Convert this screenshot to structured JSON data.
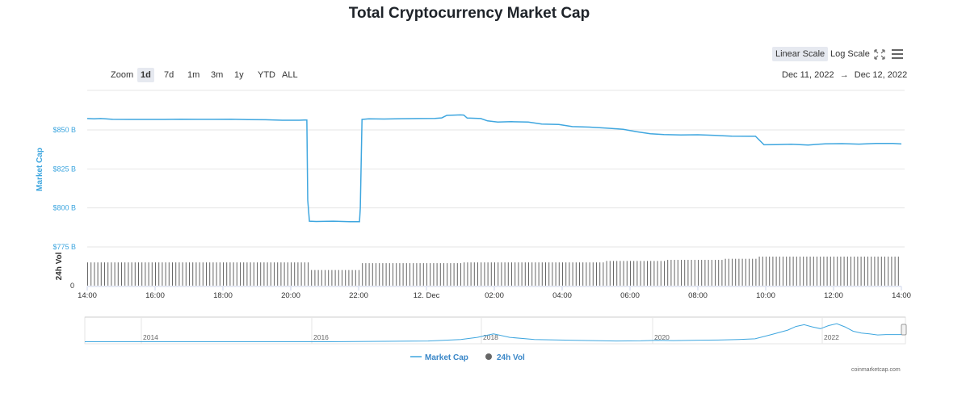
{
  "chart_data": {
    "type": "line",
    "title": "Total Cryptocurrency Market Cap",
    "ylabel": "Market Cap",
    "vol_label": "24h Vol",
    "vol_zero_label": "0",
    "y_ticks": [
      {
        "value": 850,
        "label": "$850 B"
      },
      {
        "value": 825,
        "label": "$825 B"
      },
      {
        "value": 800,
        "label": "$800 B"
      },
      {
        "value": 775,
        "label": "$775 B"
      }
    ],
    "ylim": [
      775,
      860
    ],
    "x_ticks": [
      "14:00",
      "16:00",
      "18:00",
      "20:00",
      "22:00",
      "12. Dec",
      "02:00",
      "04:00",
      "06:00",
      "08:00",
      "10:00",
      "12:00",
      "14:00"
    ],
    "x_hours_range": [
      0,
      24
    ],
    "series": [
      {
        "name": "Market Cap",
        "color": "#3ea6df",
        "points": [
          [
            0,
            857.3
          ],
          [
            0.4,
            857.1
          ],
          [
            0.8,
            857.3
          ],
          [
            1.5,
            856.8
          ],
          [
            2.5,
            856.7
          ],
          [
            3.5,
            856.7
          ],
          [
            4.5,
            856.7
          ],
          [
            5.5,
            856.9
          ],
          [
            6.5,
            856.8
          ],
          [
            7.5,
            856.8
          ],
          [
            8.5,
            856.9
          ],
          [
            9.5,
            856.6
          ],
          [
            10.5,
            856.5
          ],
          [
            11.5,
            856.2
          ],
          [
            12.5,
            856.2
          ],
          [
            12.8,
            856.3
          ],
          [
            12.95,
            856.3
          ],
          [
            13.0,
            805
          ],
          [
            13.1,
            791.5
          ],
          [
            13.5,
            791.3
          ],
          [
            14.5,
            791.5
          ],
          [
            15.5,
            791.2
          ],
          [
            16.05,
            791.2
          ],
          [
            16.1,
            800
          ],
          [
            16.2,
            856.7
          ],
          [
            16.6,
            857.1
          ],
          [
            17.5,
            857.0
          ],
          [
            18.5,
            857.2
          ],
          [
            19.5,
            857.3
          ],
          [
            20.5,
            857.4
          ],
          [
            20.9,
            857.7
          ],
          [
            21.2,
            859.3
          ],
          [
            22.0,
            859.6
          ],
          [
            22.2,
            859.5
          ],
          [
            22.4,
            857.6
          ],
          [
            23.2,
            857.3
          ],
          [
            23.6,
            855.8
          ],
          [
            24.2,
            855.0
          ],
          [
            25.0,
            855.3
          ],
          [
            26.0,
            855.0
          ],
          [
            26.8,
            853.8
          ],
          [
            27.8,
            853.5
          ],
          [
            28.6,
            852.1
          ],
          [
            29.6,
            851.8
          ],
          [
            30.6,
            851.2
          ],
          [
            31.6,
            850.4
          ],
          [
            32.4,
            848.8
          ],
          [
            33.2,
            847.5
          ],
          [
            34.0,
            847.0
          ],
          [
            35.0,
            846.8
          ],
          [
            36.0,
            846.9
          ],
          [
            37.0,
            846.5
          ],
          [
            38.0,
            846.0
          ],
          [
            39.0,
            845.9
          ],
          [
            39.4,
            845.9
          ],
          [
            39.9,
            840.5
          ],
          [
            40.6,
            840.6
          ],
          [
            41.5,
            840.8
          ],
          [
            42.5,
            840.3
          ],
          [
            43.5,
            841.1
          ],
          [
            44.5,
            841.2
          ],
          [
            45.5,
            840.9
          ],
          [
            46.5,
            841.3
          ],
          [
            47.5,
            841.3
          ],
          [
            48.0,
            841.0
          ]
        ]
      },
      {
        "name": "24h Vol",
        "color": "#666666",
        "steps": [
          {
            "from": 0,
            "to": 13.0,
            "level": 0.64
          },
          {
            "from": 13.0,
            "to": 16.1,
            "level": 0.43
          },
          {
            "from": 16.1,
            "to": 22.0,
            "level": 0.62
          },
          {
            "from": 22.0,
            "to": 30.5,
            "level": 0.64
          },
          {
            "from": 30.5,
            "to": 34.0,
            "level": 0.68
          },
          {
            "from": 34.0,
            "to": 37.5,
            "level": 0.71
          },
          {
            "from": 37.5,
            "to": 39.5,
            "level": 0.74
          },
          {
            "from": 39.5,
            "to": 48.0,
            "level": 0.8
          }
        ]
      }
    ],
    "navigator": {
      "years": [
        "2014",
        "2016",
        "2018",
        "2020",
        "2022"
      ],
      "profile": [
        [
          0,
          0.02
        ],
        [
          0.3,
          0.02
        ],
        [
          0.42,
          0.05
        ],
        [
          0.46,
          0.12
        ],
        [
          0.48,
          0.22
        ],
        [
          0.5,
          0.38
        ],
        [
          0.52,
          0.22
        ],
        [
          0.55,
          0.12
        ],
        [
          0.6,
          0.08
        ],
        [
          0.65,
          0.05
        ],
        [
          0.68,
          0.06
        ],
        [
          0.7,
          0.08
        ],
        [
          0.72,
          0.07
        ],
        [
          0.75,
          0.09
        ],
        [
          0.78,
          0.1
        ],
        [
          0.8,
          0.12
        ],
        [
          0.82,
          0.15
        ],
        [
          0.84,
          0.35
        ],
        [
          0.86,
          0.55
        ],
        [
          0.87,
          0.72
        ],
        [
          0.88,
          0.8
        ],
        [
          0.89,
          0.7
        ],
        [
          0.9,
          0.62
        ],
        [
          0.91,
          0.76
        ],
        [
          0.92,
          0.85
        ],
        [
          0.93,
          0.7
        ],
        [
          0.94,
          0.5
        ],
        [
          0.95,
          0.42
        ],
        [
          0.96,
          0.38
        ],
        [
          0.97,
          0.33
        ],
        [
          0.98,
          0.35
        ],
        [
          1.0,
          0.35
        ]
      ]
    },
    "legend": [
      "Market Cap",
      "24h Vol"
    ]
  },
  "toolbar": {
    "linear_scale": "Linear Scale",
    "log_scale": "Log Scale",
    "fullscreen_icon": "fullscreen-icon",
    "menu_icon": "menu-icon"
  },
  "zoom": {
    "label": "Zoom",
    "options": [
      "1d",
      "7d",
      "1m",
      "3m",
      "1y",
      "YTD",
      "ALL"
    ],
    "active": "1d"
  },
  "range": {
    "from": "Dec 11, 2022",
    "arrow": "→",
    "to": "Dec 12, 2022"
  },
  "credits": "coinmarketcap.com",
  "colors": {
    "market_cap": "#3ea6df",
    "volume": "#666666",
    "grid": "#e6e6e6"
  }
}
